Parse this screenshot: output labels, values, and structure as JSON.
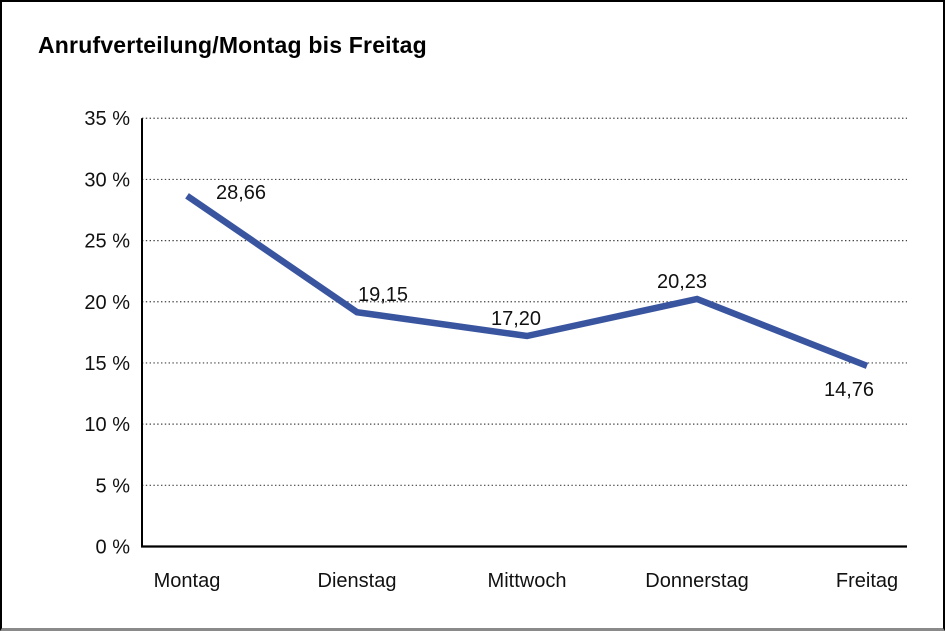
{
  "title": "Anrufverteilung/Montag bis Freitag",
  "colors": {
    "line": "#3A55A0",
    "axis": "#000000",
    "grid": "#444444",
    "text": "#111111"
  },
  "chart_data": {
    "type": "line",
    "title": "Anrufverteilung/Montag bis Freitag",
    "categories": [
      "Montag",
      "Dienstag",
      "Mittwoch",
      "Donnerstag",
      "Freitag"
    ],
    "values": [
      28.66,
      19.15,
      17.2,
      20.23,
      14.76
    ],
    "data_labels": [
      "28,66",
      "19,15",
      "17,20",
      "20,23",
      "14,76"
    ],
    "xlabel": "",
    "ylabel": "",
    "ylim": [
      0,
      35
    ],
    "ytick_step": 5,
    "ytick_labels": [
      "0 %",
      "5 %",
      "10 %",
      "15 %",
      "20 %",
      "25 %",
      "30 %",
      "35 %"
    ],
    "grid": "horizontal-dotted",
    "legend": "none",
    "series_color": "#3A55A0"
  }
}
